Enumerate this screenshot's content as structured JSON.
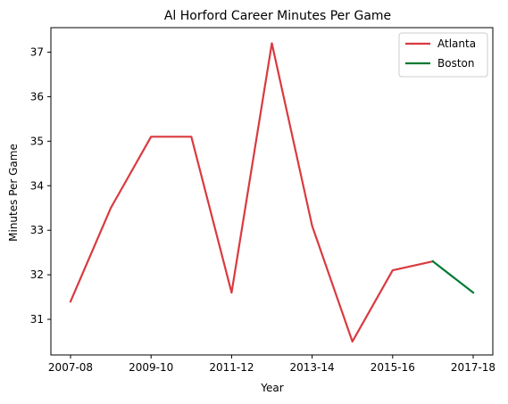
{
  "chart_data": {
    "type": "line",
    "title": "Al Horford Career Minutes Per Game",
    "xlabel": "Year",
    "ylabel": "Minutes Per Game",
    "x": [
      "2007-08",
      "2008-09",
      "2009-10",
      "2010-11",
      "2011-12",
      "2012-13",
      "2013-14",
      "2014-15",
      "2015-16",
      "2016-17",
      "2017-18"
    ],
    "x_tick_labels": [
      "2007-08",
      "2009-10",
      "2011-12",
      "2013-14",
      "2015-16",
      "2017-18"
    ],
    "ylim": [
      30.2,
      37.55
    ],
    "y_ticks": [
      31,
      32,
      33,
      34,
      35,
      36,
      37
    ],
    "series": [
      {
        "name": "Atlanta",
        "color": "#d93a3f",
        "x": [
          "2007-08",
          "2008-09",
          "2009-10",
          "2010-11",
          "2011-12",
          "2012-13",
          "2013-14",
          "2014-15",
          "2015-16",
          "2016-17"
        ],
        "values": [
          31.4,
          33.5,
          35.1,
          35.1,
          31.6,
          37.2,
          33.1,
          30.5,
          32.1,
          32.3
        ]
      },
      {
        "name": "Boston",
        "color": "#007a33",
        "x": [
          "2016-17",
          "2017-18"
        ],
        "values": [
          32.3,
          31.6
        ]
      }
    ],
    "legend": "top-right",
    "grid": false
  }
}
